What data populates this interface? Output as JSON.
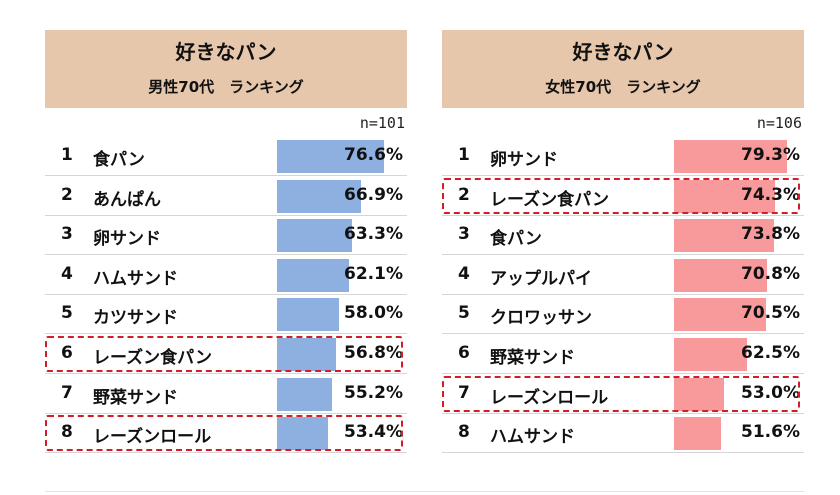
{
  "chart_data": [
    {
      "type": "bar",
      "title": "好きなパン",
      "subtitle": "男性70代　ランキング",
      "n_label": "n=101",
      "ranks": [
        "1",
        "2",
        "3",
        "4",
        "5",
        "6",
        "7",
        "8"
      ],
      "categories": [
        "食パン",
        "あんぱん",
        "卵サンド",
        "ハムサンド",
        "カツサンド",
        "レーズン食パン",
        "野菜サンド",
        "レーズンロール"
      ],
      "values": [
        76.6,
        66.9,
        63.3,
        62.1,
        58.0,
        56.8,
        55.2,
        53.4
      ],
      "value_labels": [
        "76.6%",
        "66.9%",
        "63.3%",
        "62.1%",
        "58.0%",
        "56.8%",
        "55.2%",
        "53.4%"
      ],
      "highlighted_ranks": [
        6,
        8
      ],
      "bar_color": "#8eb0e0",
      "xlim": [
        0,
        100
      ]
    },
    {
      "type": "bar",
      "title": "好きなパン",
      "subtitle": "女性70代　ランキング",
      "n_label": "n=106",
      "ranks": [
        "1",
        "2",
        "3",
        "4",
        "5",
        "6",
        "7",
        "8"
      ],
      "categories": [
        "卵サンド",
        "レーズン食パン",
        "食パン",
        "アップルパイ",
        "クロワッサン",
        "野菜サンド",
        "レーズンロール",
        "ハムサンド"
      ],
      "values": [
        79.3,
        74.3,
        73.8,
        70.8,
        70.5,
        62.5,
        53.0,
        51.6
      ],
      "value_labels": [
        "79.3%",
        "74.3%",
        "73.8%",
        "70.8%",
        "70.5%",
        "62.5%",
        "53.0%",
        "51.6%"
      ],
      "highlighted_ranks": [
        2,
        7
      ],
      "bar_color": "#f89a9c",
      "xlim": [
        0,
        100
      ]
    }
  ],
  "colors": {
    "header_bg": "#e6c7ac",
    "highlight_border": "#d11f2a"
  }
}
